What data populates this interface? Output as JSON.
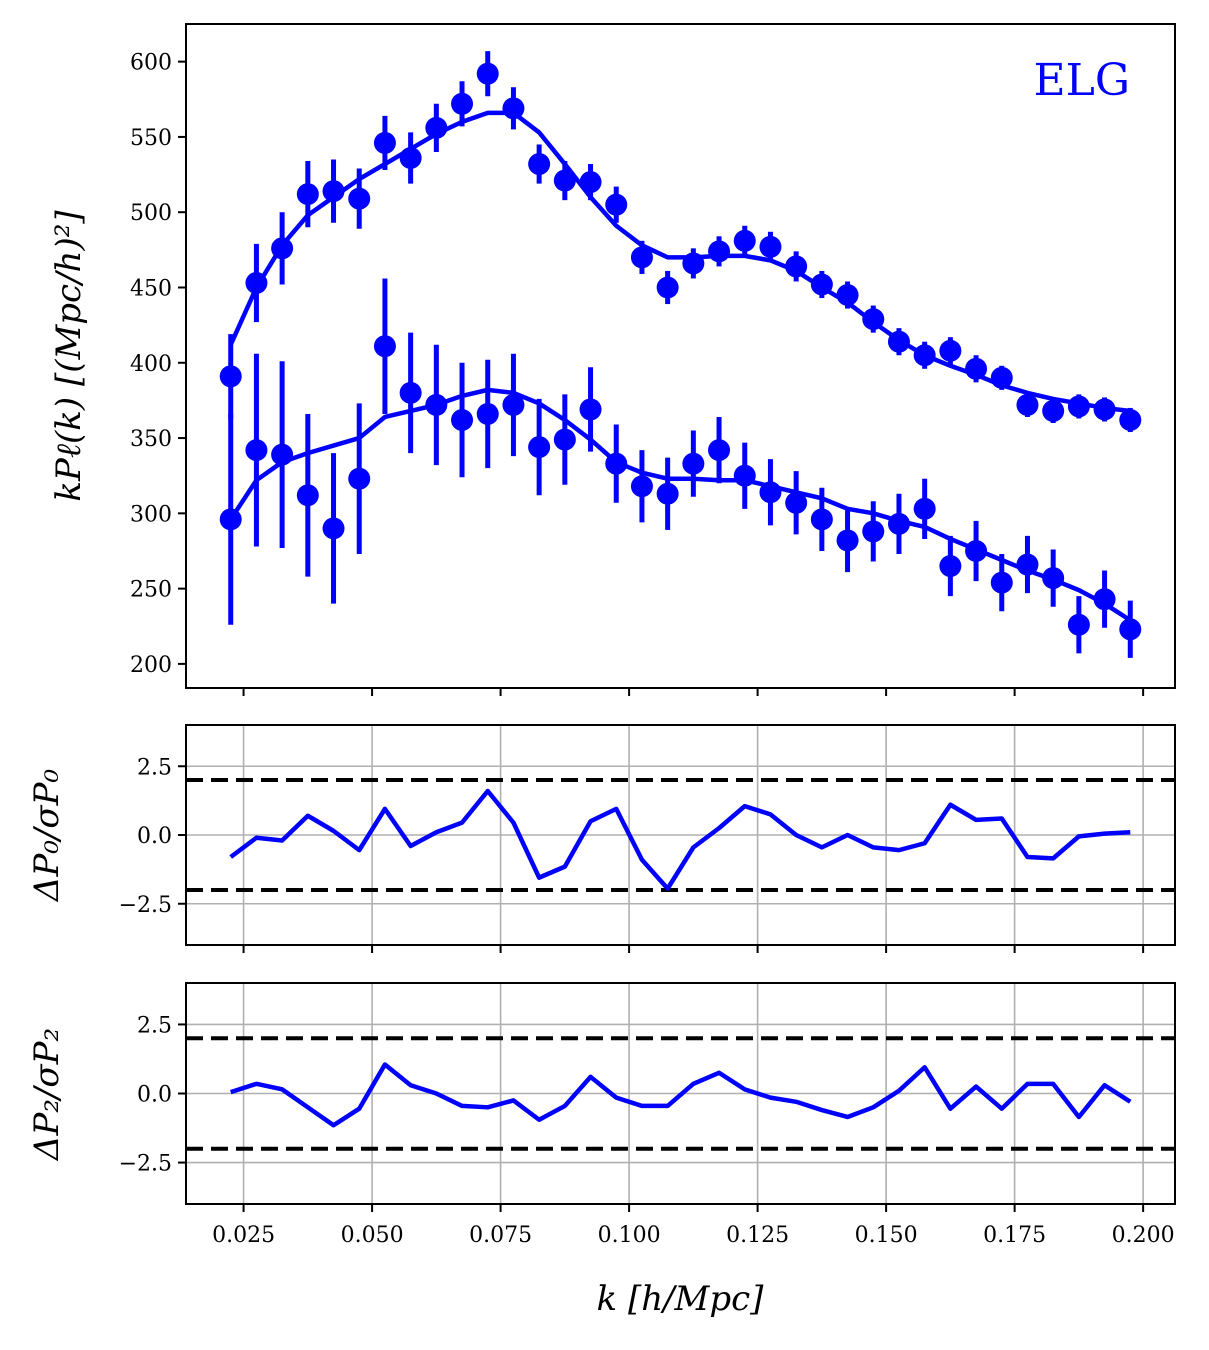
{
  "chart_data": [
    {
      "type": "scatter",
      "panel": "power-spectrum",
      "annotation": "ELG",
      "ylabel": "kPℓ(k) [(Mpc/h)²]",
      "xlim": [
        0.0138,
        0.2062
      ],
      "ylim": [
        184,
        625
      ],
      "xticks": [
        0.025,
        0.05,
        0.075,
        0.1,
        0.125,
        0.15,
        0.175,
        0.2
      ],
      "yticks": [
        200,
        250,
        300,
        350,
        400,
        450,
        500,
        550,
        600
      ],
      "ytick_labels": [
        "200",
        "250",
        "300",
        "350",
        "400",
        "450",
        "500",
        "550",
        "600"
      ],
      "color": "#0000ff",
      "x": [
        0.0225,
        0.0275,
        0.0325,
        0.0375,
        0.0425,
        0.0475,
        0.0525,
        0.0575,
        0.0625,
        0.0675,
        0.0725,
        0.0775,
        0.0825,
        0.0875,
        0.0925,
        0.0975,
        0.1025,
        0.1075,
        0.1125,
        0.1175,
        0.1225,
        0.1275,
        0.1325,
        0.1375,
        0.1425,
        0.1475,
        0.1525,
        0.1575,
        0.1625,
        0.1675,
        0.1725,
        0.1775,
        0.1825,
        0.1875,
        0.1925,
        0.1975
      ],
      "series": [
        {
          "multipole": "monopole",
          "values": [
            391,
            453,
            476,
            512,
            514,
            509,
            546,
            536,
            556,
            572,
            592,
            569,
            532,
            521,
            520,
            505,
            470,
            450,
            466,
            474,
            481,
            477,
            464,
            452,
            445,
            429,
            414,
            405,
            408,
            396,
            390,
            372,
            368,
            371,
            369,
            362
          ],
          "errors": [
            28,
            26,
            24,
            22,
            21,
            20,
            18,
            17,
            16,
            15,
            15,
            14,
            13,
            13,
            12,
            12,
            11,
            11,
            10,
            10,
            10,
            10,
            10,
            9,
            9,
            9,
            9,
            9,
            9,
            9,
            8,
            8,
            8,
            8,
            8,
            8
          ],
          "model": [
            412,
            450,
            478,
            498,
            510,
            522,
            532,
            542,
            552,
            560,
            566,
            566,
            553,
            532,
            510,
            491,
            478,
            470,
            470,
            471,
            471,
            468,
            461,
            450,
            440,
            427,
            415,
            405,
            398,
            392,
            385,
            380,
            376,
            373,
            370,
            368
          ]
        },
        {
          "multipole": "quadrupole",
          "values": [
            296,
            342,
            339,
            312,
            290,
            323,
            411,
            380,
            372,
            362,
            366,
            372,
            344,
            349,
            369,
            333,
            318,
            313,
            333,
            342,
            325,
            314,
            307,
            296,
            282,
            288,
            293,
            303,
            265,
            275,
            254,
            266,
            257,
            226,
            243,
            223
          ],
          "errors": [
            70,
            64,
            62,
            54,
            50,
            50,
            45,
            40,
            40,
            38,
            36,
            34,
            32,
            30,
            28,
            26,
            24,
            24,
            22,
            22,
            22,
            22,
            21,
            21,
            21,
            20,
            20,
            20,
            20,
            20,
            19,
            19,
            19,
            19,
            19,
            19
          ],
          "model": [
            296,
            322,
            334,
            340,
            345,
            350,
            364,
            368,
            372,
            378,
            382,
            380,
            373,
            362,
            349,
            334,
            327,
            323,
            323,
            322,
            322,
            318,
            314,
            310,
            303,
            300,
            295,
            291,
            283,
            276,
            269,
            262,
            256,
            249,
            240,
            229
          ]
        }
      ]
    },
    {
      "type": "line",
      "panel": "monopole-residual",
      "ylabel": "ΔP₀/σP₀",
      "xlim": [
        0.0138,
        0.2062
      ],
      "ylim": [
        -4,
        4
      ],
      "grid": true,
      "xticks": [
        0.025,
        0.05,
        0.075,
        0.1,
        0.125,
        0.15,
        0.175,
        0.2
      ],
      "yticks": [
        -2.5,
        0.0,
        2.5
      ],
      "ytick_labels": [
        "−2.5",
        "0.0",
        "2.5"
      ],
      "reference_lines": [
        2,
        -2
      ],
      "color": "#0000ff",
      "x": [
        0.0225,
        0.0275,
        0.0325,
        0.0375,
        0.0425,
        0.0475,
        0.0525,
        0.0575,
        0.0625,
        0.0675,
        0.0725,
        0.0775,
        0.0825,
        0.0875,
        0.0925,
        0.0975,
        0.1025,
        0.1075,
        0.1125,
        0.1175,
        0.1225,
        0.1275,
        0.1325,
        0.1375,
        0.1425,
        0.1475,
        0.1525,
        0.1575,
        0.1625,
        0.1675,
        0.1725,
        0.1775,
        0.1825,
        0.1875,
        0.1925,
        0.1975
      ],
      "values": [
        -0.8,
        -0.1,
        -0.2,
        0.7,
        0.15,
        -0.55,
        0.95,
        -0.4,
        0.1,
        0.45,
        1.6,
        0.45,
        -1.55,
        -1.15,
        0.5,
        0.95,
        -0.9,
        -1.95,
        -0.45,
        0.25,
        1.05,
        0.75,
        0.0,
        -0.45,
        0.0,
        -0.45,
        -0.55,
        -0.3,
        1.1,
        0.55,
        0.6,
        -0.8,
        -0.85,
        -0.05,
        0.05,
        0.1
      ]
    },
    {
      "type": "line",
      "panel": "quadrupole-residual",
      "ylabel": "ΔP₂/σP₂",
      "xlabel": "k [h/Mpc]",
      "xlim": [
        0.0138,
        0.2062
      ],
      "ylim": [
        -4,
        4
      ],
      "grid": true,
      "xticks": [
        0.025,
        0.05,
        0.075,
        0.1,
        0.125,
        0.15,
        0.175,
        0.2
      ],
      "xtick_labels": [
        "0.025",
        "0.050",
        "0.075",
        "0.100",
        "0.125",
        "0.150",
        "0.175",
        "0.200"
      ],
      "yticks": [
        -2.5,
        0.0,
        2.5
      ],
      "ytick_labels": [
        "−2.5",
        "0.0",
        "2.5"
      ],
      "reference_lines": [
        2,
        -2
      ],
      "color": "#0000ff",
      "x": [
        0.0225,
        0.0275,
        0.0325,
        0.0375,
        0.0425,
        0.0475,
        0.0525,
        0.0575,
        0.0625,
        0.0675,
        0.0725,
        0.0775,
        0.0825,
        0.0875,
        0.0925,
        0.0975,
        0.1025,
        0.1075,
        0.1125,
        0.1175,
        0.1225,
        0.1275,
        0.1325,
        0.1375,
        0.1425,
        0.1475,
        0.1525,
        0.1575,
        0.1625,
        0.1675,
        0.1725,
        0.1775,
        0.1825,
        0.1875,
        0.1925,
        0.1975
      ],
      "values": [
        0.05,
        0.35,
        0.15,
        -0.5,
        -1.15,
        -0.55,
        1.05,
        0.3,
        0.0,
        -0.45,
        -0.5,
        -0.25,
        -0.95,
        -0.45,
        0.6,
        -0.15,
        -0.45,
        -0.45,
        0.35,
        0.75,
        0.15,
        -0.15,
        -0.3,
        -0.6,
        -0.85,
        -0.5,
        0.1,
        0.95,
        -0.55,
        0.25,
        -0.55,
        0.35,
        0.35,
        -0.85,
        0.3,
        -0.3
      ]
    }
  ]
}
